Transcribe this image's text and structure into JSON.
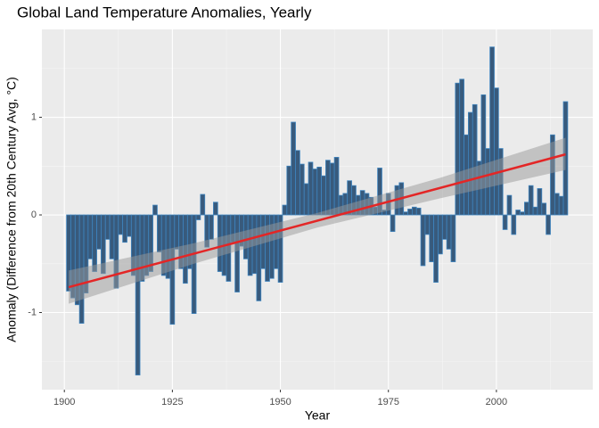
{
  "chart_data": {
    "type": "bar",
    "title": "Global Land Temperature Anomalies, Yearly",
    "xlabel": "Year",
    "ylabel": "Anomaly (Difference from 20th Century Avg, °C)",
    "x": [
      1901,
      1902,
      1903,
      1904,
      1905,
      1906,
      1907,
      1908,
      1909,
      1910,
      1911,
      1912,
      1913,
      1914,
      1915,
      1916,
      1917,
      1918,
      1919,
      1920,
      1921,
      1922,
      1923,
      1924,
      1925,
      1926,
      1927,
      1928,
      1929,
      1930,
      1931,
      1932,
      1933,
      1934,
      1935,
      1936,
      1937,
      1938,
      1939,
      1940,
      1941,
      1942,
      1943,
      1944,
      1945,
      1946,
      1947,
      1948,
      1949,
      1950,
      1951,
      1952,
      1953,
      1954,
      1955,
      1956,
      1957,
      1958,
      1959,
      1960,
      1961,
      1962,
      1963,
      1964,
      1965,
      1966,
      1967,
      1968,
      1969,
      1970,
      1971,
      1972,
      1973,
      1974,
      1975,
      1976,
      1977,
      1978,
      1979,
      1980,
      1981,
      1982,
      1983,
      1984,
      1985,
      1986,
      1987,
      1988,
      1989,
      1990,
      1991,
      1992,
      1993,
      1994,
      1995,
      1996,
      1997,
      1998,
      1999,
      2000,
      2001,
      2002,
      2003,
      2004,
      2005,
      2006,
      2007,
      2008,
      2009,
      2010,
      2011,
      2012,
      2013,
      2014,
      2015,
      2016
    ],
    "values": [
      -0.78,
      -0.85,
      -0.92,
      -1.11,
      -0.8,
      -0.45,
      -0.58,
      -0.35,
      -0.6,
      -0.25,
      -0.45,
      -0.75,
      -0.2,
      -0.28,
      -0.22,
      -0.62,
      -1.64,
      -0.68,
      -0.62,
      -0.58,
      0.1,
      -0.38,
      -0.62,
      -0.65,
      -1.12,
      -0.35,
      -0.55,
      -0.7,
      -0.55,
      -1.01,
      -0.05,
      0.21,
      -0.33,
      -0.25,
      0.13,
      -0.58,
      -0.62,
      -0.68,
      -0.28,
      -0.79,
      -0.32,
      -0.45,
      -0.62,
      -0.6,
      -0.88,
      -0.55,
      -0.68,
      -0.65,
      -0.55,
      -0.69,
      0.1,
      0.5,
      0.95,
      0.66,
      0.52,
      0.32,
      0.54,
      0.47,
      0.49,
      0.4,
      0.56,
      0.53,
      0.59,
      0.2,
      0.22,
      0.35,
      0.3,
      0.2,
      0.25,
      0.22,
      0.18,
      0.08,
      0.48,
      0.05,
      0.22,
      -0.17,
      0.3,
      0.33,
      0.03,
      0.06,
      0.08,
      0.07,
      -0.52,
      -0.2,
      -0.48,
      -0.69,
      -0.4,
      -0.25,
      -0.35,
      -0.48,
      1.35,
      1.39,
      0.82,
      1.05,
      1.13,
      0.55,
      1.23,
      0.68,
      1.72,
      1.3,
      0.68,
      -0.15,
      0.2,
      -0.2,
      0.05,
      0.03,
      0.13,
      0.3,
      0.08,
      0.27,
      0.12,
      -0.2,
      0.82,
      0.22,
      0.19,
      1.16
    ],
    "color": "#385a7c",
    "edge_color": "#3e84bf",
    "trend": {
      "x": [
        1901,
        2016
      ],
      "values": [
        -0.74,
        0.62
      ],
      "color": "#e32626"
    },
    "trend_band": {
      "x": [
        1901,
        1930,
        1958.5,
        1987,
        2016
      ],
      "lower": [
        -0.91,
        -0.5,
        -0.13,
        0.17,
        0.46
      ],
      "upper": [
        -0.57,
        -0.29,
        0.02,
        0.38,
        0.79
      ],
      "color": "#999999"
    },
    "xlim": [
      1894.8,
      2022.3
    ],
    "ylim": [
      -1.79,
      1.9
    ],
    "xticks": [
      1900,
      1925,
      1950,
      1975,
      2000
    ],
    "yticks": [
      -1,
      0,
      1
    ],
    "grid": true
  }
}
